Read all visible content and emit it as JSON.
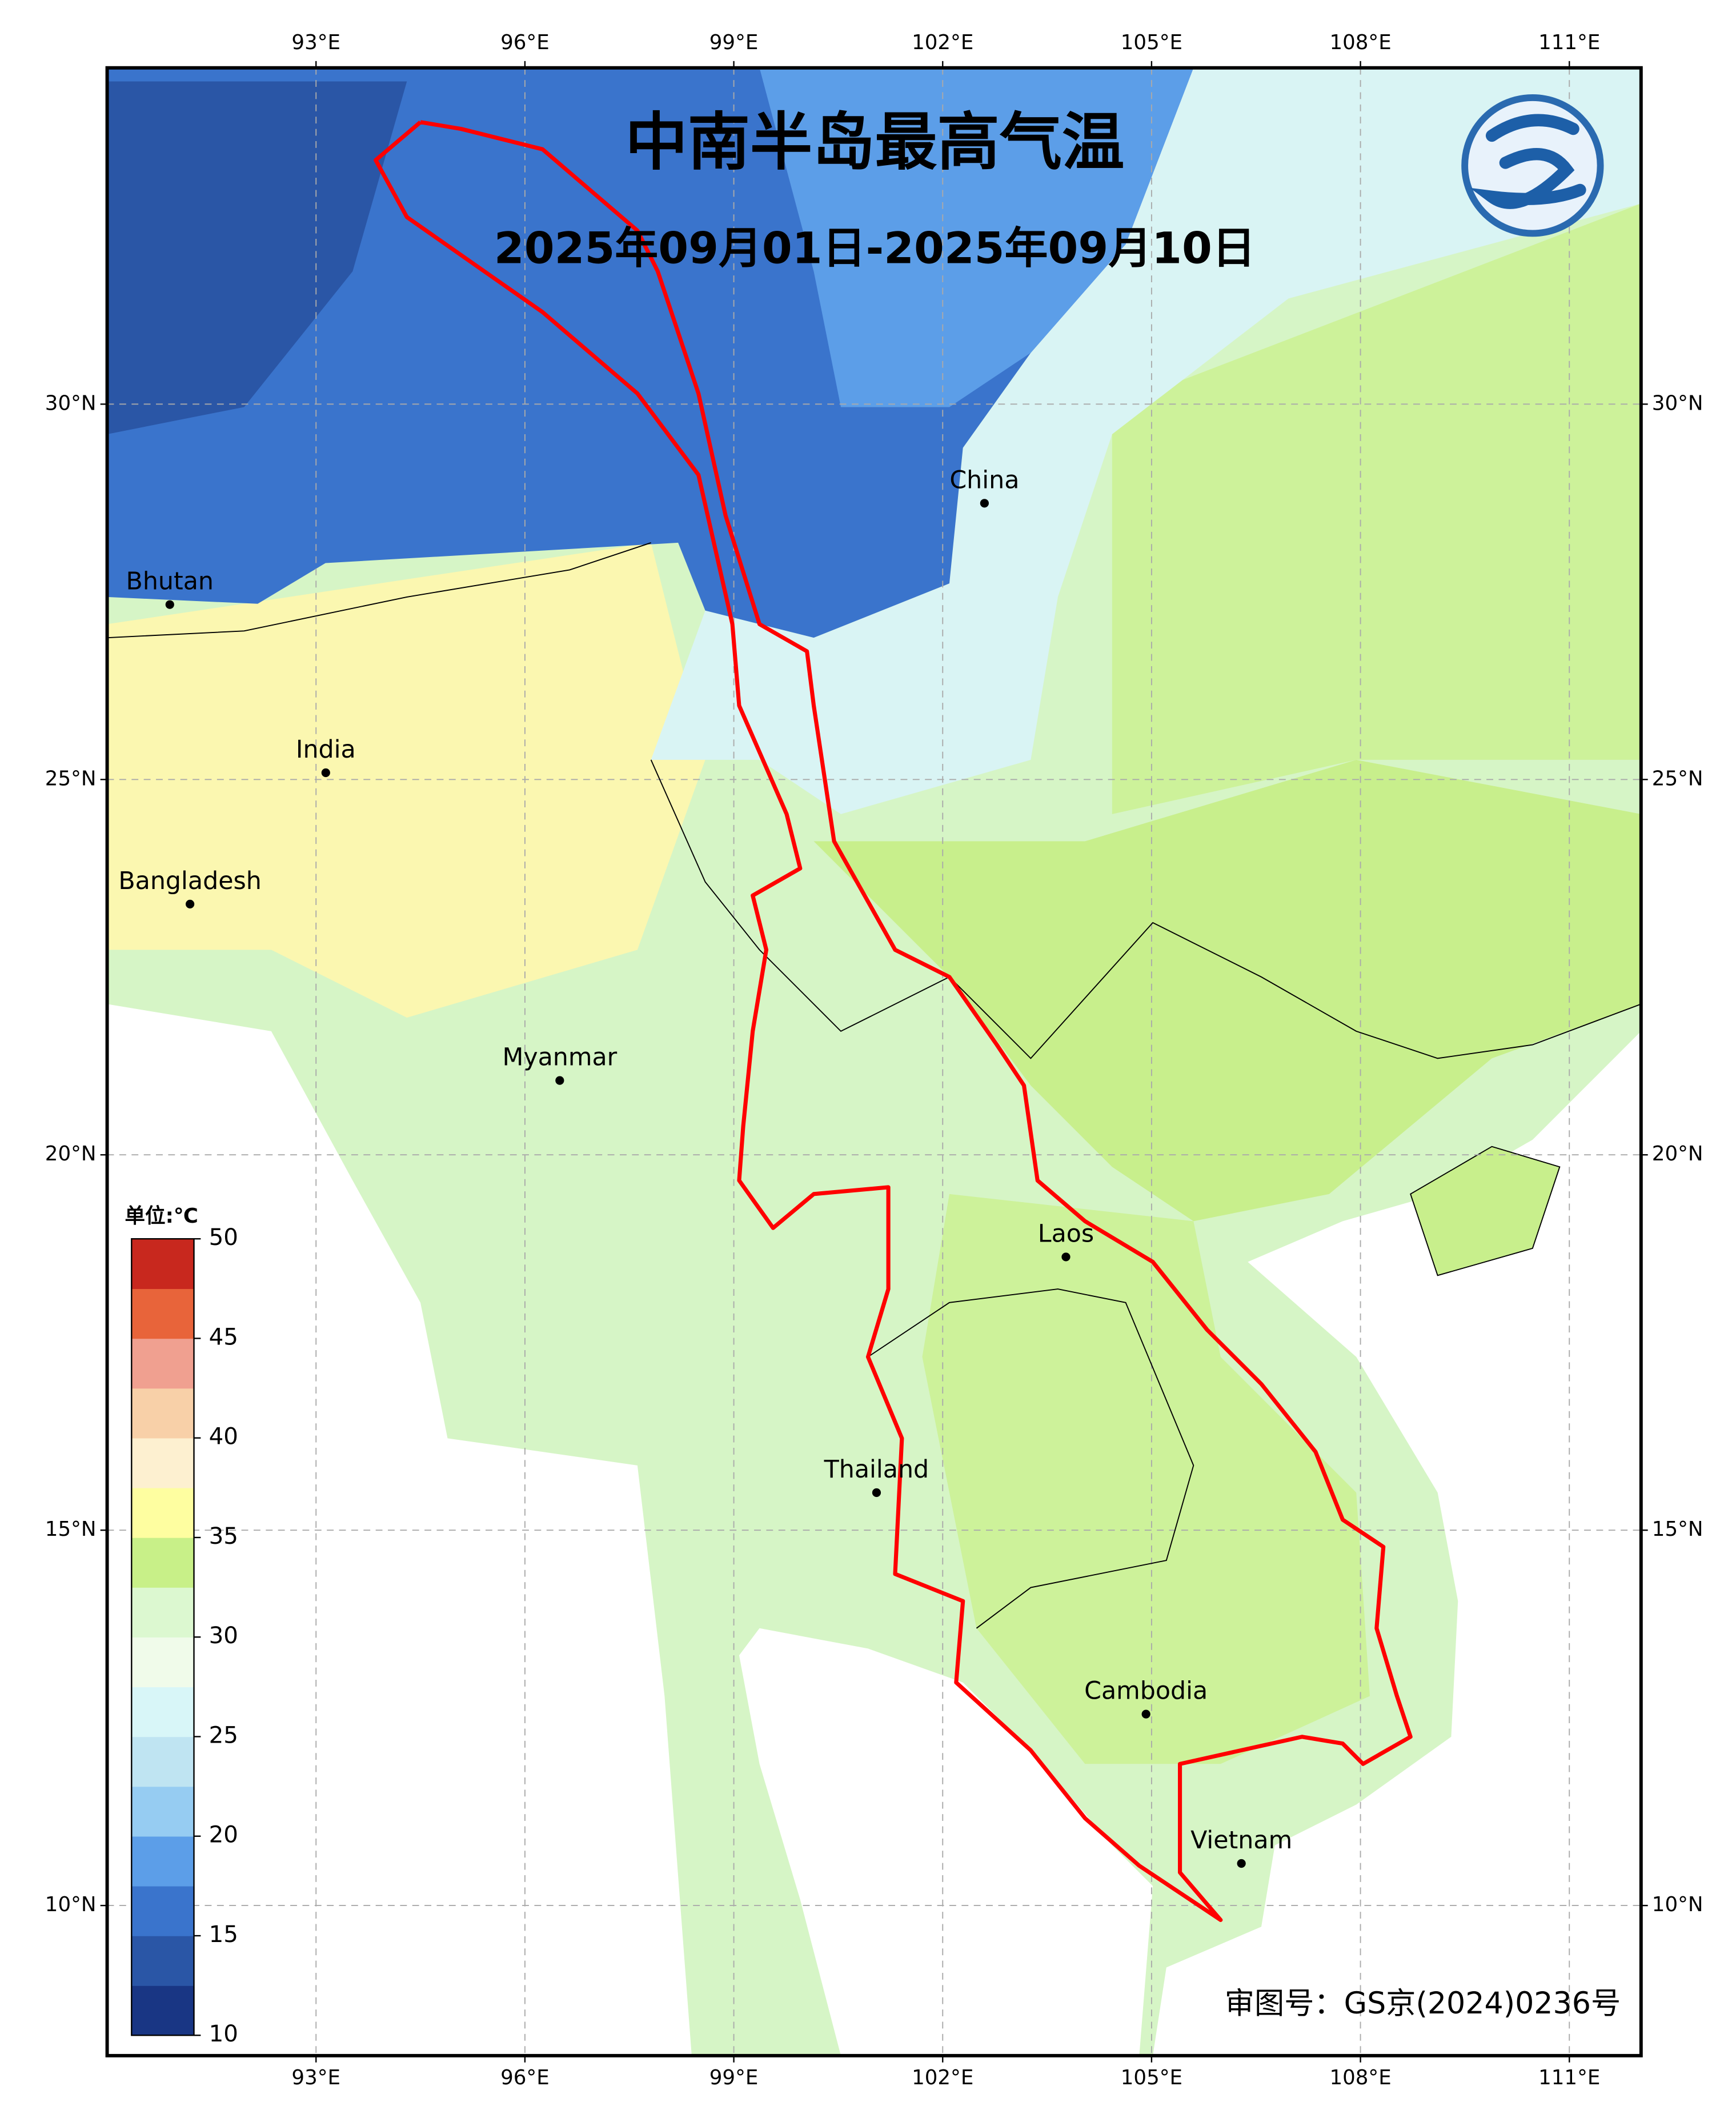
{
  "map": {
    "title": "中南半岛最高气温",
    "subtitle": "2025年09月01日-2025年09月10日",
    "xlim": [
      90,
      112.03
    ],
    "ylim": [
      8.0,
      34.48
    ],
    "xticks": [
      {
        "value": 93,
        "label": "93°E"
      },
      {
        "value": 96,
        "label": "96°E"
      },
      {
        "value": 99,
        "label": "99°E"
      },
      {
        "value": 102,
        "label": "102°E"
      },
      {
        "value": 105,
        "label": "105°E"
      },
      {
        "value": 108,
        "label": "108°E"
      },
      {
        "value": 111,
        "label": "111°E"
      }
    ],
    "yticks": [
      {
        "value": 10,
        "label": "10°N"
      },
      {
        "value": 15,
        "label": "15°N"
      },
      {
        "value": 20,
        "label": "20°N"
      },
      {
        "value": 25,
        "label": "25°N"
      },
      {
        "value": 30,
        "label": "30°N"
      }
    ],
    "grid": true,
    "places": [
      {
        "name": "China",
        "lon": 102.6,
        "lat": 28.68
      },
      {
        "name": "Bhutan",
        "lon": 90.9,
        "lat": 27.33
      },
      {
        "name": "India",
        "lon": 93.14,
        "lat": 25.09
      },
      {
        "name": "Bangladesh",
        "lon": 91.19,
        "lat": 23.34
      },
      {
        "name": "Myanmar",
        "lon": 96.5,
        "lat": 20.99
      },
      {
        "name": "Laos",
        "lon": 103.77,
        "lat": 18.64
      },
      {
        "name": "Thailand",
        "lon": 101.05,
        "lat": 15.5
      },
      {
        "name": "Cambodia",
        "lon": 104.92,
        "lat": 12.55
      },
      {
        "name": "Vietnam",
        "lon": 106.29,
        "lat": 10.56
      }
    ],
    "colorbar": {
      "unit": "单位:℃",
      "lim": [
        10,
        50
      ],
      "ticks": [
        10,
        15,
        20,
        25,
        30,
        35,
        40,
        45,
        50
      ],
      "colors": [
        "#193684",
        "#2a56a6",
        "#3a74cc",
        "#5c9ee8",
        "#96ccf2",
        "#bfe4f2",
        "#d8f6f8",
        "#f0fbea",
        "#dcf8d0",
        "#c8f088",
        "#fefea0",
        "#fdf0d0",
        "#f8d0a8",
        "#f0a090",
        "#e8643a",
        "#c8281e"
      ]
    },
    "approval": "审图号：GS京(2024)0236号"
  }
}
